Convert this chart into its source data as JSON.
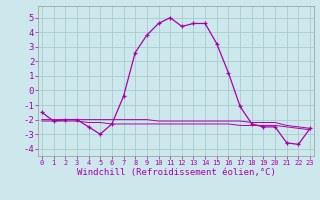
{
  "xlabel": "Windchill (Refroidissement éolien,°C)",
  "background_color": "#cce8ec",
  "grid_color": "#aacccc",
  "line_color": "#aa00aa",
  "tick_color": "#aa00aa",
  "x": [
    0,
    1,
    2,
    3,
    4,
    5,
    6,
    7,
    8,
    9,
    10,
    11,
    12,
    13,
    14,
    15,
    16,
    17,
    18,
    19,
    20,
    21,
    22,
    23
  ],
  "y_main": [
    -1.5,
    -2.1,
    -2.0,
    -2.0,
    -2.5,
    -3.0,
    -2.3,
    -0.4,
    2.6,
    3.8,
    4.6,
    5.0,
    4.4,
    4.6,
    4.6,
    3.2,
    1.2,
    -1.1,
    -2.3,
    -2.5,
    -2.5,
    -3.6,
    -3.7,
    -2.6
  ],
  "y_flat1": [
    -2.0,
    -2.0,
    -2.0,
    -2.0,
    -2.0,
    -2.0,
    -2.0,
    -2.0,
    -2.0,
    -2.0,
    -2.1,
    -2.1,
    -2.1,
    -2.1,
    -2.1,
    -2.1,
    -2.1,
    -2.1,
    -2.2,
    -2.2,
    -2.2,
    -2.4,
    -2.5,
    -2.6
  ],
  "y_flat2": [
    -2.1,
    -2.1,
    -2.1,
    -2.1,
    -2.2,
    -2.2,
    -2.3,
    -2.3,
    -2.3,
    -2.3,
    -2.3,
    -2.3,
    -2.3,
    -2.3,
    -2.3,
    -2.3,
    -2.3,
    -2.4,
    -2.4,
    -2.4,
    -2.4,
    -2.5,
    -2.6,
    -2.7
  ],
  "ylim": [
    -4.5,
    5.8
  ],
  "xlim": [
    -0.3,
    23.3
  ],
  "yticks": [
    -4,
    -3,
    -2,
    -1,
    0,
    1,
    2,
    3,
    4,
    5
  ],
  "xtick_labels": [
    "0",
    "1",
    "2",
    "3",
    "4",
    "5",
    "6",
    "7",
    "8",
    "9",
    "10",
    "11",
    "12",
    "13",
    "14",
    "15",
    "16",
    "17",
    "18",
    "19",
    "20",
    "21",
    "22",
    "23"
  ],
  "xlabel_fontsize": 6.5,
  "ytick_fontsize": 6.5,
  "xtick_fontsize": 5.0
}
